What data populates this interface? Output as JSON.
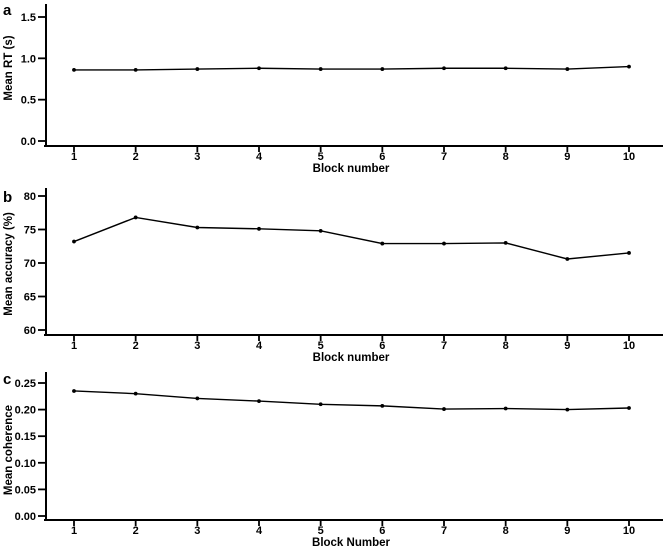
{
  "figure": {
    "background": "#ffffff",
    "ink_color": "#000000"
  },
  "chart_data": [
    {
      "type": "line",
      "panel_label": "a",
      "categories": [
        "1",
        "2",
        "3",
        "4",
        "5",
        "6",
        "7",
        "8",
        "9",
        "10"
      ],
      "values": [
        0.86,
        0.86,
        0.87,
        0.88,
        0.87,
        0.87,
        0.88,
        0.88,
        0.87,
        0.9
      ],
      "xlabel": "Block number",
      "ylabel": "Mean RT (s)",
      "yticks": [
        0.0,
        0.5,
        1.0,
        1.5
      ],
      "ytick_labels": [
        "0.0",
        "0.5",
        "1.0",
        "1.5"
      ],
      "ylim": [
        0.0,
        1.5
      ],
      "xlim": [
        1,
        10
      ],
      "grid": false,
      "legend": "none",
      "marker": "filled-circle",
      "color": "#000000"
    },
    {
      "type": "line",
      "panel_label": "b",
      "categories": [
        "1",
        "2",
        "3",
        "4",
        "5",
        "6",
        "7",
        "8",
        "9",
        "10"
      ],
      "values": [
        73.2,
        76.8,
        75.3,
        75.1,
        74.8,
        72.9,
        72.9,
        73.0,
        70.6,
        71.5
      ],
      "xlabel": "Block number",
      "ylabel": "Mean accuracy (%)",
      "yticks": [
        60,
        65,
        70,
        75,
        80
      ],
      "ytick_labels": [
        "60",
        "65",
        "70",
        "75",
        "80"
      ],
      "ylim": [
        60,
        80
      ],
      "xlim": [
        1,
        10
      ],
      "grid": false,
      "legend": "none",
      "marker": "filled-circle",
      "color": "#000000"
    },
    {
      "type": "line",
      "panel_label": "c",
      "categories": [
        "1",
        "2",
        "3",
        "4",
        "5",
        "6",
        "7",
        "8",
        "9",
        "10"
      ],
      "values": [
        0.235,
        0.23,
        0.221,
        0.216,
        0.21,
        0.207,
        0.201,
        0.202,
        0.2,
        0.203
      ],
      "xlabel": "Block Number",
      "ylabel": "Mean coherence",
      "yticks": [
        0.0,
        0.05,
        0.1,
        0.15,
        0.2,
        0.25
      ],
      "ytick_labels": [
        "0.00",
        "0.05",
        "0.10",
        "0.15",
        "0.20",
        "0.25"
      ],
      "ylim": [
        0.0,
        0.25
      ],
      "xlim": [
        1,
        10
      ],
      "grid": false,
      "legend": "none",
      "marker": "filled-circle",
      "color": "#000000"
    }
  ]
}
